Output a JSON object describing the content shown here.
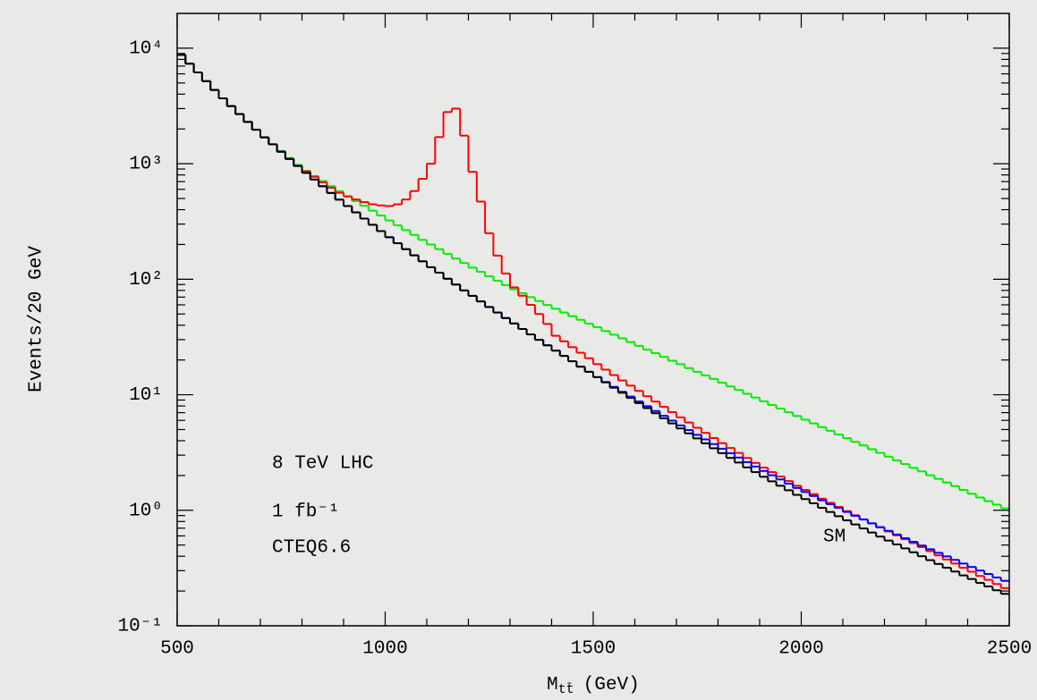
{
  "chart_data": {
    "type": "histogram-step",
    "x_label": {
      "symbol": "M",
      "subscript": "tt̄",
      "unit": "(GeV)"
    },
    "y_label": "Events/20 GeV",
    "log_y": true,
    "xlim": [
      500,
      2500
    ],
    "ylim": [
      0.1,
      20000
    ],
    "xticks": [
      500,
      1000,
      1500,
      2000,
      2500
    ],
    "xminorticks": [
      600,
      700,
      800,
      900,
      1100,
      1200,
      1300,
      1400,
      1600,
      1700,
      1800,
      1900,
      2100,
      2200,
      2300,
      2400
    ],
    "yticks": [
      {
        "value": 0.1,
        "label": "10⁻¹"
      },
      {
        "value": 1,
        "label": "10⁰"
      },
      {
        "value": 10,
        "label": "10¹"
      },
      {
        "value": 100,
        "label": "10²"
      },
      {
        "value": 1000,
        "label": "10³"
      },
      {
        "value": 10000,
        "label": "10⁴"
      }
    ],
    "yminorticks": [
      0.2,
      0.3,
      0.4,
      0.5,
      0.6,
      0.7,
      0.8,
      0.9,
      2,
      3,
      4,
      5,
      6,
      7,
      8,
      9,
      20,
      30,
      40,
      50,
      60,
      70,
      80,
      90,
      200,
      300,
      400,
      500,
      600,
      700,
      800,
      900,
      2000,
      3000,
      4000,
      5000,
      6000,
      7000,
      8000,
      9000
    ],
    "annotations": [
      "8 TeV LHC",
      "1 fb⁻¹",
      "CTEQ6.6",
      "SM"
    ],
    "bins": [
      500,
      520,
      540,
      560,
      580,
      600,
      620,
      640,
      660,
      680,
      700,
      720,
      740,
      760,
      780,
      800,
      820,
      840,
      860,
      880,
      900,
      920,
      940,
      960,
      980,
      1000,
      1020,
      1040,
      1060,
      1080,
      1100,
      1120,
      1140,
      1160,
      1180,
      1200,
      1220,
      1240,
      1260,
      1280,
      1300,
      1320,
      1340,
      1360,
      1380,
      1400,
      1420,
      1440,
      1460,
      1480,
      1500,
      1520,
      1540,
      1560,
      1580,
      1600,
      1620,
      1640,
      1660,
      1680,
      1700,
      1720,
      1740,
      1760,
      1780,
      1800,
      1820,
      1840,
      1860,
      1880,
      1900,
      1920,
      1940,
      1960,
      1980,
      2000,
      2020,
      2040,
      2060,
      2080,
      2100,
      2120,
      2140,
      2160,
      2180,
      2200,
      2220,
      2240,
      2260,
      2280,
      2300,
      2320,
      2340,
      2360,
      2380,
      2400,
      2420,
      2440,
      2460,
      2480,
      2500
    ],
    "series": [
      {
        "color": "#000000",
        "values": [
          8750,
          7350,
          6170,
          5180,
          4350,
          3680,
          3150,
          2690,
          2300,
          1970,
          1690,
          1470,
          1270,
          1100,
          957,
          834,
          729,
          638,
          558,
          489,
          430,
          379,
          335,
          296,
          261,
          231,
          205,
          182,
          161,
          143,
          127,
          114,
          101,
          90,
          80,
          71.8,
          64.3,
          57.5,
          51.5,
          46.1,
          41.4,
          37.1,
          33.3,
          29.9,
          26.8,
          24.1,
          21.7,
          19.5,
          17.5,
          15.8,
          14.2,
          12.8,
          11.5,
          10.4,
          9.39,
          8.47,
          7.66,
          6.92,
          6.25,
          5.65,
          5.11,
          4.63,
          4.19,
          3.8,
          3.44,
          3.12,
          2.84,
          2.59,
          2.35,
          2.14,
          1.95,
          1.78,
          1.63,
          1.49,
          1.36,
          1.25,
          1.15,
          1.05,
          0.967,
          0.888,
          0.818,
          0.754,
          0.696,
          0.642,
          0.592,
          0.547,
          0.506,
          0.468,
          0.433,
          0.4,
          0.37,
          0.343,
          0.318,
          0.295,
          0.273,
          0.254,
          0.235,
          0.219,
          0.203,
          0.189
        ]
      },
      {
        "color": "#0000ff",
        "values": [
          8750,
          7350,
          6170,
          5180,
          4350,
          3680,
          3150,
          2690,
          2300,
          1970,
          1690,
          1470,
          1270,
          1100,
          957,
          834,
          729,
          638,
          558,
          489,
          430,
          379,
          335,
          296,
          261,
          231,
          205,
          182,
          161,
          143,
          127,
          114,
          101,
          90,
          80,
          71.8,
          64.3,
          57.5,
          51.5,
          46.1,
          41.4,
          37.1,
          33.3,
          29.9,
          26.8,
          24.1,
          21.7,
          19.5,
          17.5,
          15.8,
          14.2,
          12.9,
          11.7,
          10.6,
          9.64,
          8.75,
          7.96,
          7.23,
          6.57,
          5.97,
          5.43,
          4.95,
          4.5,
          4.11,
          3.74,
          3.41,
          3.12,
          2.86,
          2.61,
          2.39,
          2.19,
          2.01,
          1.85,
          1.7,
          1.56,
          1.44,
          1.33,
          1.22,
          1.13,
          1.05,
          0.968,
          0.896,
          0.832,
          0.771,
          0.715,
          0.664,
          0.617,
          0.573,
          0.533,
          0.495,
          0.46,
          0.428,
          0.399,
          0.372,
          0.346,
          0.323,
          0.301,
          0.281,
          0.262,
          0.245
        ]
      },
      {
        "color": "#ff0000",
        "values": [
          8750,
          7350,
          6170,
          5180,
          4350,
          3680,
          3150,
          2690,
          2300,
          1970,
          1690,
          1470,
          1270,
          1100,
          957,
          860,
          770,
          690,
          620,
          560,
          520,
          490,
          465,
          445,
          435,
          430,
          445,
          490,
          580,
          740,
          1000,
          1700,
          2800,
          3000,
          1750,
          850,
          470,
          250,
          160,
          112,
          85,
          72,
          60,
          50,
          41,
          32.4,
          29,
          25.8,
          23.1,
          20.7,
          18.4,
          16.5,
          14.8,
          13.3,
          12,
          10.8,
          9.71,
          8.73,
          7.86,
          7.07,
          6.37,
          5.75,
          5.18,
          4.68,
          4.22,
          3.81,
          3.46,
          3.14,
          2.84,
          2.57,
          2.34,
          2.14,
          1.96,
          1.79,
          1.63,
          1.5,
          1.38,
          1.26,
          1.16,
          1.07,
          0.982,
          0.905,
          0.835,
          0.77,
          0.71,
          0.656,
          0.607,
          0.562,
          0.52,
          0.48,
          0.443,
          0.407,
          0.375,
          0.346,
          0.318,
          0.294,
          0.27,
          0.25,
          0.23,
          0.212
        ]
      },
      {
        "color": "#00ee00",
        "values": [
          8750,
          7350,
          6170,
          5180,
          4350,
          3680,
          3150,
          2690,
          2300,
          1970,
          1700,
          1480,
          1290,
          1120,
          977,
          867,
          783,
          708,
          640,
          578,
          524,
          475,
          432,
          392,
          356,
          323,
          293,
          266,
          242,
          219,
          200,
          182,
          166,
          151,
          138,
          126,
          116,
          106,
          97,
          88.9,
          81.8,
          75.7,
          70,
          64.7,
          59.8,
          55.5,
          51.5,
          47.9,
          44.5,
          41.3,
          38.4,
          35.6,
          33.1,
          30.8,
          28.6,
          26.5,
          24.6,
          22.9,
          21.3,
          19.7,
          18.4,
          17,
          15.8,
          14.7,
          13.7,
          12.7,
          11.8,
          11,
          10.2,
          9.46,
          8.79,
          8.16,
          7.59,
          7.05,
          6.55,
          6.08,
          5.65,
          5.25,
          4.88,
          4.53,
          4.21,
          3.91,
          3.64,
          3.38,
          3.14,
          2.91,
          2.7,
          2.51,
          2.33,
          2.17,
          2.01,
          1.87,
          1.74,
          1.62,
          1.5,
          1.39,
          1.29,
          1.2,
          1.12,
          1.04
        ]
      }
    ]
  }
}
